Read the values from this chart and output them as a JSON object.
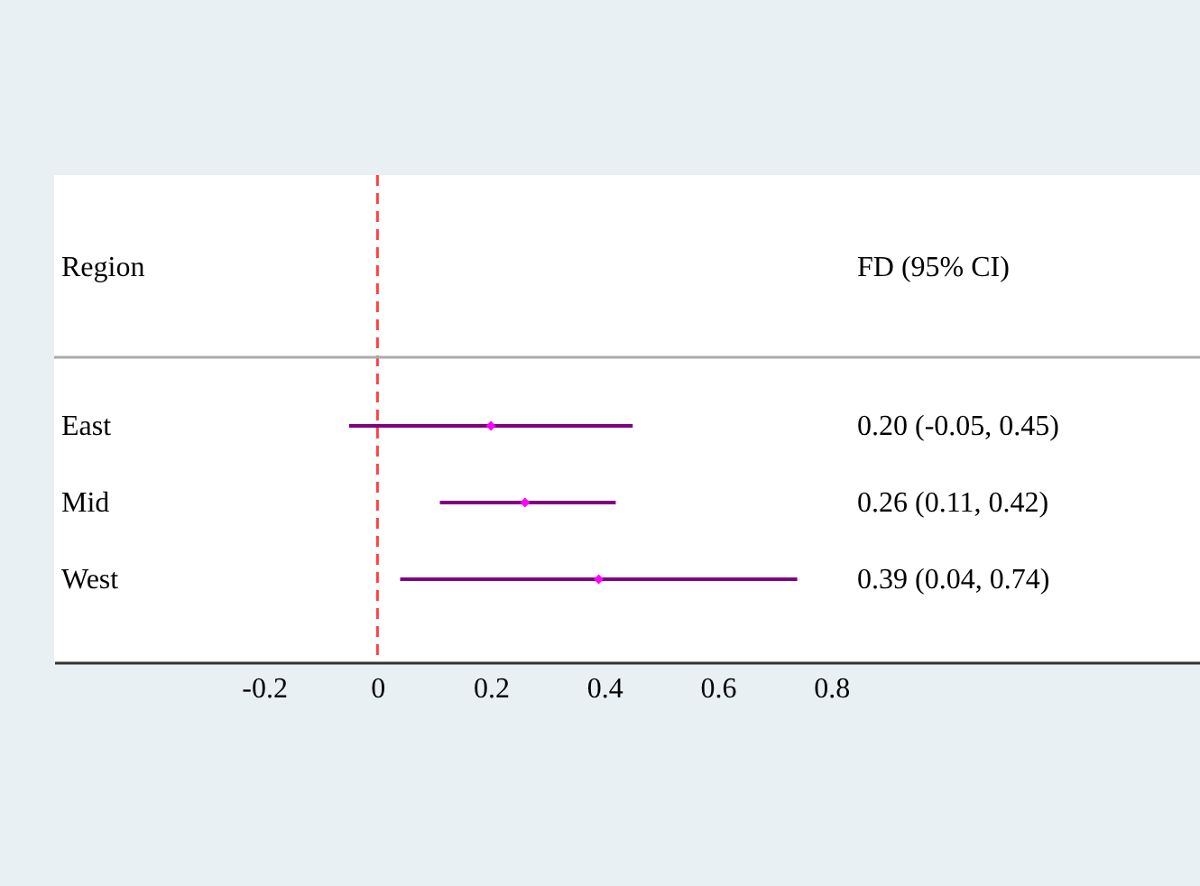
{
  "chart_data": {
    "type": "scatter",
    "orientation": "horizontal",
    "ylabel": "Region",
    "annotations": [
      "FD (95% CI)",
      "0.20 (-0.05, 0.45)",
      "0.26 (0.11, 0.42)",
      "0.39 (0.04, 0.74)"
    ],
    "categories": [
      "East",
      "Mid",
      "West"
    ],
    "series": [
      {
        "color": "#ff00ff",
        "values": [
          0.2,
          0.26,
          0.39
        ],
        "errors": [
          [
            -0.05,
            0.45
          ],
          [
            0.11,
            0.42
          ],
          [
            0.04,
            0.74
          ]
        ]
      }
    ],
    "marker": "diamond",
    "xlim": [
      -0.57,
      1.45
    ],
    "xticks": [
      -0.2,
      0,
      0.2,
      0.4,
      0.6,
      0.8
    ],
    "ref_lines": [
      {
        "axis": "x",
        "value": 0,
        "color": "#ff4040",
        "line_style": "dashed"
      }
    ],
    "grid": false
  }
}
